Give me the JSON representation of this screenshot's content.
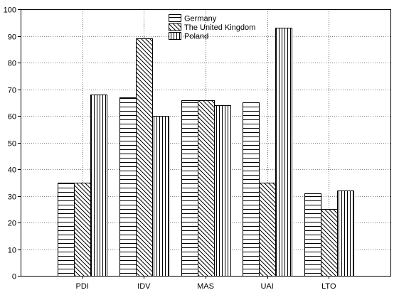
{
  "chart_data": {
    "type": "bar",
    "categories": [
      "PDI",
      "IDV",
      "MAS",
      "UAI",
      "LTO"
    ],
    "series": [
      {
        "name": "Germany",
        "pattern": "horizontal-lines",
        "values": [
          35,
          67,
          66,
          65,
          31
        ]
      },
      {
        "name": "The United Kingdom",
        "pattern": "diagonal-hatch",
        "values": [
          35,
          89,
          66,
          35,
          25
        ]
      },
      {
        "name": "Poland",
        "pattern": "vertical-lines",
        "values": [
          68,
          60,
          64,
          93,
          32
        ]
      }
    ],
    "ylim": [
      0,
      100
    ],
    "yticks": [
      0,
      10,
      20,
      30,
      40,
      50,
      60,
      70,
      80,
      90,
      100
    ],
    "grid": true,
    "legend_position": "top-center",
    "colors": {
      "stroke": "#000000",
      "background": "#ffffff"
    }
  }
}
